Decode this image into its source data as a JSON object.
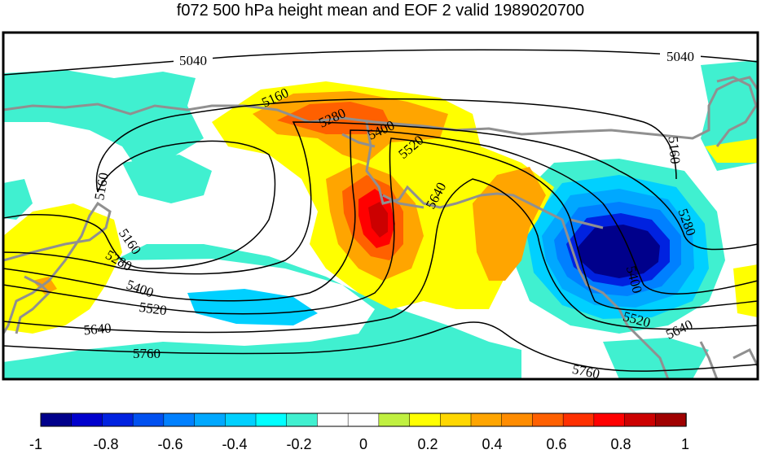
{
  "title": "f072 500 hPa height mean and EOF 2 valid 1989020700",
  "contours": {
    "labels": [
      "5040",
      "5040",
      "5160",
      "5160",
      "5160",
      "5160",
      "5280",
      "5280",
      "5280",
      "5400",
      "5400",
      "5400",
      "5520",
      "5520",
      "5520",
      "5640",
      "5640",
      "5640",
      "5760",
      "5760"
    ]
  },
  "colorbar": {
    "tick_labels": [
      "-1",
      "-0.8",
      "-0.6",
      "-0.4",
      "-0.2",
      "0",
      "0.2",
      "0.4",
      "0.6",
      "0.8",
      "1"
    ],
    "colors": [
      "#00008b",
      "#0000cd",
      "#0022e0",
      "#0050f0",
      "#0080ff",
      "#00a8ff",
      "#00d0ff",
      "#00ffff",
      "#40f0d0",
      "#ffffff",
      "#ffffff",
      "#c0f040",
      "#ffff00",
      "#ffd700",
      "#ffa500",
      "#ff8c00",
      "#ff6000",
      "#ff3000",
      "#ff0000",
      "#cc0000",
      "#a00000"
    ]
  },
  "colors": {
    "coastline": "#909090",
    "contour": "#000000",
    "frame": "#000000"
  }
}
